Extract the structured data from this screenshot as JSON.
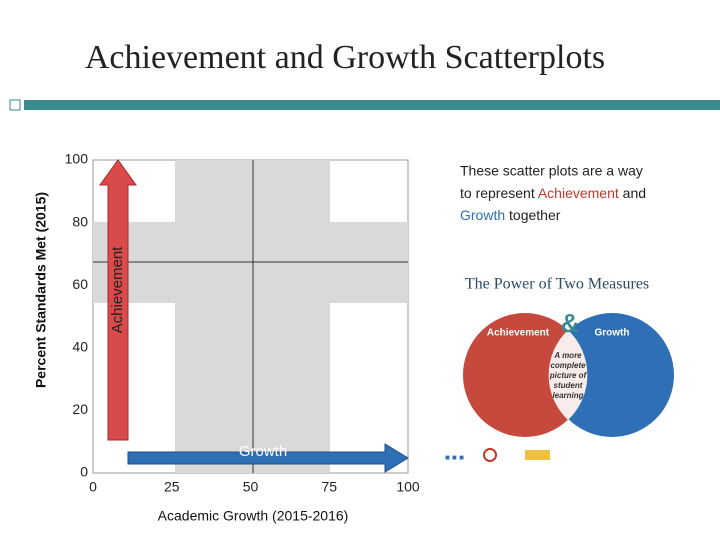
{
  "title": "Achievement and Growth Scatterplots",
  "chart_data": {
    "type": "scatter",
    "xlabel": "Academic Growth (2015-2016)",
    "ylabel": "Percent Standards Met (2015)",
    "xlim": [
      0,
      100
    ],
    "ylim": [
      0,
      100
    ],
    "xticks": [
      0,
      25,
      50,
      75,
      100
    ],
    "yticks": [
      0,
      20,
      40,
      60,
      80,
      100
    ],
    "arrows": {
      "y": "Achievement",
      "x": "Growth"
    }
  },
  "note": {
    "line1": "These scatter plots are a way",
    "line2": [
      "to represent ",
      "Achievement",
      " and"
    ],
    "line3": [
      "Growth",
      " together"
    ]
  },
  "infographic": {
    "title": "The Power of Two Measures",
    "left": "Achievement",
    "amp": "&",
    "right": "Growth",
    "center": [
      "A more",
      "complete",
      "picture of",
      "student",
      "learning"
    ]
  }
}
